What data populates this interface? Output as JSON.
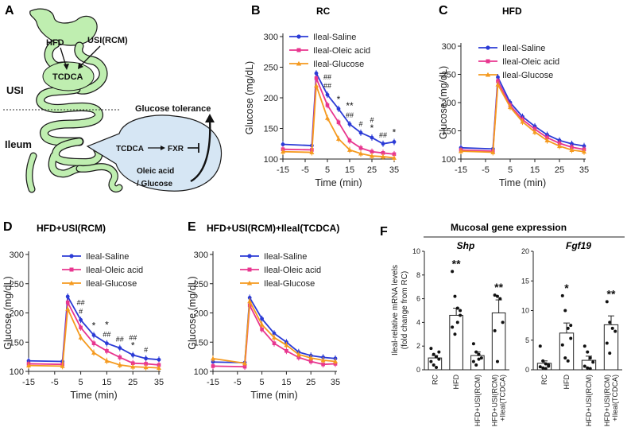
{
  "panels": {
    "A": {
      "letter": "A",
      "labels": {
        "hfd": "HFD",
        "usi_rcm": "USI(RCM)",
        "tcdca_top": "TCDCA",
        "usi": "USI",
        "ileum": "Ileum",
        "glucose_tolerance": "Glucose tolerance",
        "tcdca_fxr": "TCDCA",
        "fxr": "FXR",
        "oleic_acid": "Oleic acid",
        "glucose": "/ Glucose"
      },
      "colors": {
        "intestine": "#bfeeb0",
        "outline": "#1a1a1a",
        "bubble": "#d6e6f4"
      }
    },
    "B": {
      "letter": "B"
    },
    "C": {
      "letter": "C"
    },
    "D": {
      "letter": "D"
    },
    "E": {
      "letter": "E"
    },
    "F": {
      "letter": "F"
    }
  },
  "colors": {
    "saline": "#2b3bd6",
    "oleic": "#e8368f",
    "glucose": "#f59a1f"
  },
  "chart_data": [
    {
      "id": "B",
      "type": "line",
      "title": "RC",
      "xlabel": "Time (min)",
      "ylabel": "Glucose (mg/dL)",
      "xlim": [
        -15,
        35
      ],
      "ylim": [
        100,
        300
      ],
      "xticks": [
        -15,
        -5,
        5,
        15,
        25,
        35
      ],
      "yticks": [
        100,
        150,
        200,
        250,
        300
      ],
      "x": [
        -15,
        -2,
        0,
        5,
        10,
        15,
        20,
        25,
        30,
        35
      ],
      "series": [
        {
          "name": "Ileal-Saline",
          "values": [
            124,
            122,
            240,
            205,
            182,
            157,
            143,
            135,
            125,
            128
          ]
        },
        {
          "name": "Ileal-Oleic acid",
          "values": [
            116,
            115,
            232,
            188,
            160,
            130,
            118,
            112,
            110,
            108
          ]
        },
        {
          "name": "Ileal-Glucose",
          "values": [
            112,
            111,
            220,
            167,
            133,
            115,
            109,
            105,
            104,
            102
          ]
        }
      ],
      "annotations": [
        "##",
        "##",
        "*",
        "##",
        "**",
        "#",
        "*",
        "#",
        "##",
        "*"
      ]
    },
    {
      "id": "C",
      "type": "line",
      "title": "HFD",
      "xlabel": "Time (min)",
      "ylabel": "Glucose (mg/dL)",
      "xlim": [
        -15,
        35
      ],
      "ylim": [
        100,
        300
      ],
      "xticks": [
        -15,
        -5,
        5,
        15,
        25,
        35
      ],
      "yticks": [
        100,
        150,
        200,
        250,
        300
      ],
      "x": [
        -15,
        -2,
        0,
        5,
        10,
        15,
        20,
        25,
        30,
        35
      ],
      "series": [
        {
          "name": "Ileal-Saline",
          "values": [
            120,
            118,
            245,
            200,
            175,
            158,
            143,
            133,
            127,
            123
          ]
        },
        {
          "name": "Ileal-Oleic acid",
          "values": [
            116,
            114,
            238,
            195,
            170,
            153,
            138,
            128,
            121,
            117
          ]
        },
        {
          "name": "Ileal-Glucose",
          "values": [
            114,
            112,
            232,
            192,
            166,
            148,
            133,
            123,
            116,
            113
          ]
        }
      ]
    },
    {
      "id": "D",
      "type": "line",
      "title": "HFD+USI(RCM)",
      "xlabel": "Time (min)",
      "ylabel": "Glucose (mg/dL)",
      "xlim": [
        -15,
        35
      ],
      "ylim": [
        100,
        300
      ],
      "xticks": [
        -15,
        -5,
        5,
        15,
        25,
        35
      ],
      "yticks": [
        100,
        150,
        200,
        250,
        300
      ],
      "x": [
        -15,
        -2,
        0,
        5,
        10,
        15,
        20,
        25,
        30,
        35
      ],
      "series": [
        {
          "name": "Ileal-Saline",
          "values": [
            118,
            117,
            228,
            188,
            162,
            148,
            140,
            128,
            122,
            120
          ]
        },
        {
          "name": "Ileal-Oleic acid",
          "values": [
            113,
            112,
            218,
            175,
            148,
            135,
            124,
            114,
            113,
            111
          ]
        },
        {
          "name": "Ileal-Glucose",
          "values": [
            110,
            109,
            207,
            158,
            132,
            118,
            111,
            108,
            107,
            106
          ]
        }
      ],
      "annotations": [
        "#",
        "##",
        "*",
        "##",
        "*",
        "##",
        "*",
        "##",
        "#"
      ]
    },
    {
      "id": "E",
      "type": "line",
      "title": "HFD+USI(RCM)+Ileal(TCDCA)",
      "xlabel": "Time (min)",
      "ylabel": "Glucose (mg/dL)",
      "xlim": [
        -15,
        35
      ],
      "ylim": [
        100,
        300
      ],
      "xticks": [
        -15,
        -5,
        5,
        15,
        25,
        35
      ],
      "yticks": [
        100,
        150,
        200,
        250,
        300
      ],
      "x": [
        -15,
        -2,
        0,
        5,
        10,
        15,
        20,
        25,
        30,
        35
      ],
      "series": [
        {
          "name": "Ileal-Saline",
          "values": [
            116,
            115,
            226,
            190,
            165,
            150,
            133,
            127,
            124,
            122
          ]
        },
        {
          "name": "Ileal-Oleic acid",
          "values": [
            109,
            108,
            213,
            172,
            148,
            135,
            124,
            117,
            112,
            113
          ]
        },
        {
          "name": "Ileal-Glucose",
          "values": [
            122,
            114,
            220,
            180,
            158,
            145,
            129,
            123,
            119,
            117
          ]
        }
      ]
    },
    {
      "id": "F",
      "type": "bar",
      "title": "Mucosal gene expression",
      "ylabel": "Ileal-relative mRNA levels (fold change from RC)",
      "categories": [
        "RC",
        "HFD",
        "HFD+USI(RCM)",
        "HFD+USI(RCM) +Ileal(TCDCA)"
      ],
      "subplots": [
        {
          "gene": "Shp",
          "ylim": [
            0,
            10
          ],
          "yticks": [
            0,
            2,
            4,
            6,
            8,
            10
          ],
          "values": [
            1.0,
            4.6,
            1.2,
            4.8
          ],
          "errors": [
            0.2,
            0.6,
            0.3,
            1.1
          ],
          "annotations": [
            "",
            "**",
            "",
            "**"
          ],
          "points": [
            [
              1.8,
              1.3,
              1.1,
              0.9,
              0.7,
              0.4,
              0.2,
              1.5
            ],
            [
              8.3,
              6.2,
              5.2,
              4.6,
              3.6,
              3.0,
              4.0,
              5.0
            ],
            [
              2.2,
              1.5,
              1.3,
              1.0,
              0.7,
              0.4,
              0.9
            ],
            [
              6.3,
              6.2,
              6.0,
              4.0,
              3.3,
              0.7
            ]
          ]
        },
        {
          "gene": "Fgf19",
          "ylim": [
            0,
            20
          ],
          "yticks": [
            0,
            5,
            10,
            15,
            20
          ],
          "values": [
            1.1,
            6.2,
            1.6,
            7.6
          ],
          "errors": [
            0.4,
            1.7,
            0.7,
            1.5
          ],
          "annotations": [
            "",
            "*",
            "",
            "**"
          ],
          "points": [
            [
              4.0,
              1.5,
              1.0,
              0.8,
              0.5,
              0.3,
              0.2,
              0.6
            ],
            [
              12.5,
              10.0,
              7.0,
              5.3,
              4.2,
              2.0,
              1.5,
              7.5
            ],
            [
              4.0,
              3.0,
              2.0,
              1.3,
              0.6,
              0.3,
              0.2
            ],
            [
              11.5,
              8.0,
              7.0,
              6.5,
              4.5,
              2.8
            ]
          ]
        }
      ]
    }
  ]
}
